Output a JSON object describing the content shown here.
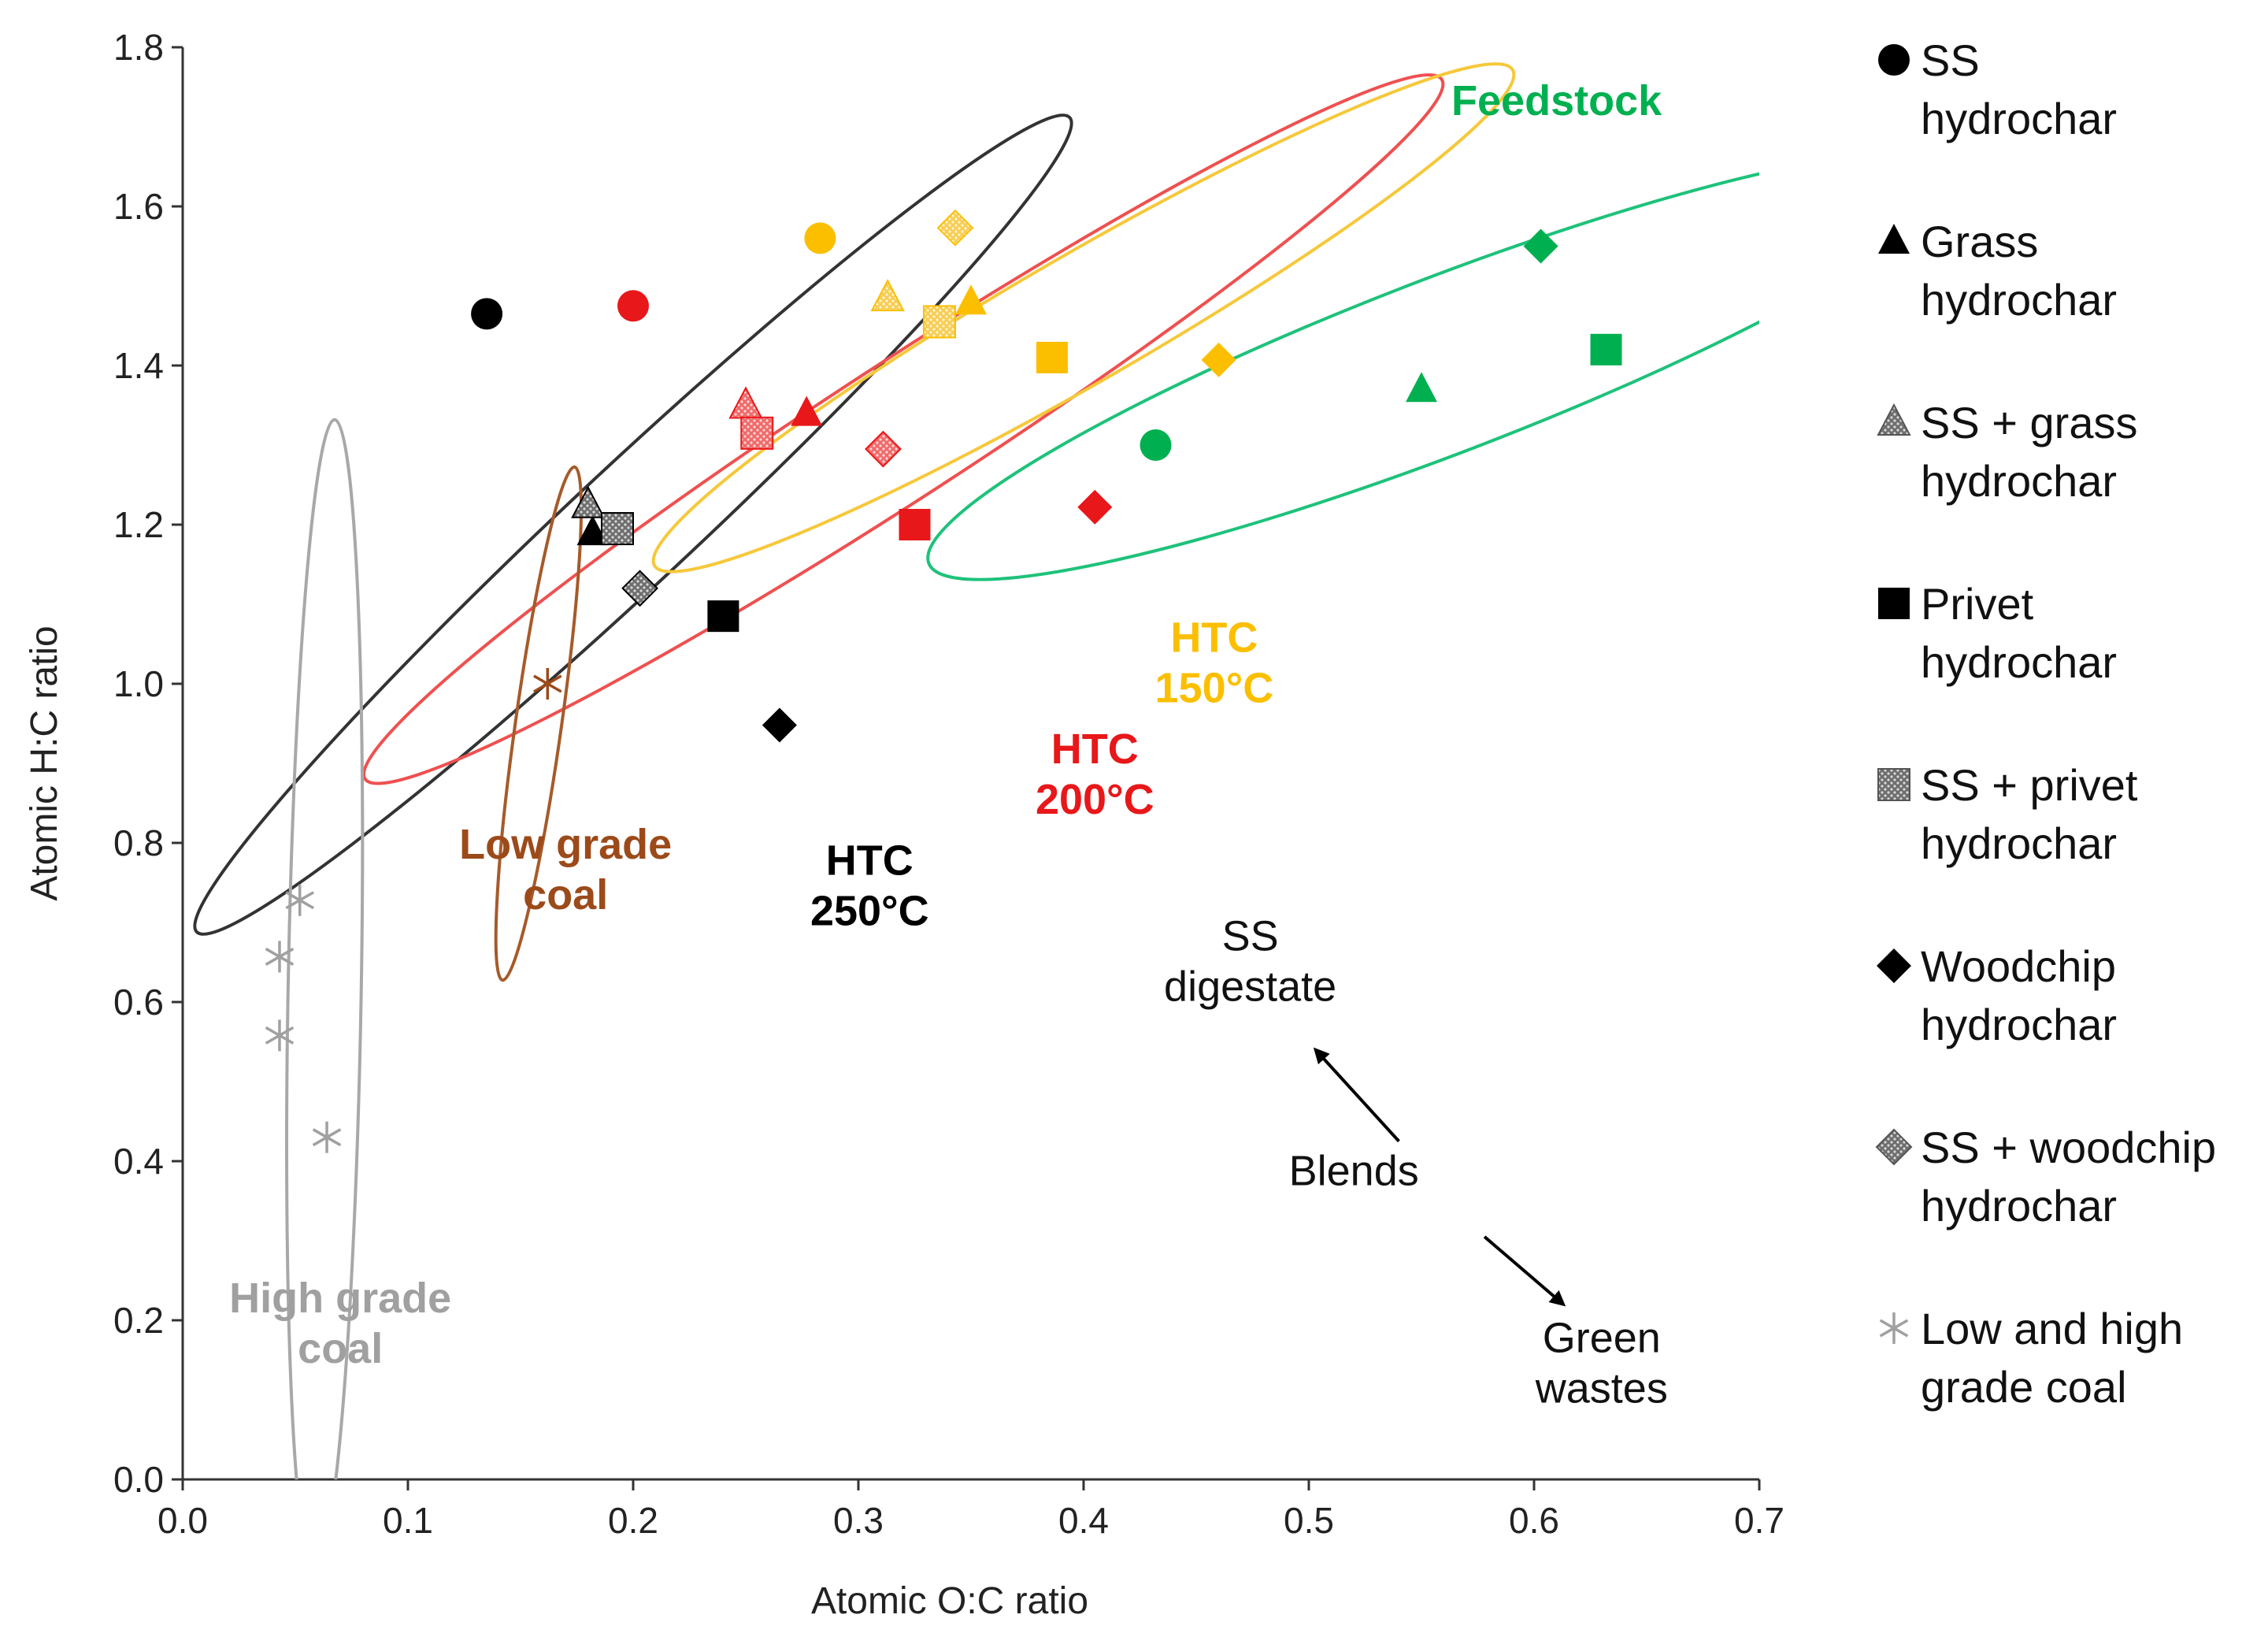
{
  "chart_data": {
    "type": "scatter",
    "title": "",
    "xlabel": "Atomic O:C ratio",
    "ylabel": "Atomic H:C ratio",
    "xlim": [
      0.0,
      0.7
    ],
    "ylim": [
      0.0,
      1.8
    ],
    "xticks": [
      0.0,
      0.1,
      0.2,
      0.3,
      0.4,
      0.5,
      0.6,
      0.7
    ],
    "yticks": [
      0.0,
      0.2,
      0.4,
      0.6,
      0.8,
      1.0,
      1.2,
      1.4,
      1.6,
      1.8
    ],
    "xtick_labels": [
      "0.0",
      "0.1",
      "0.2",
      "0.3",
      "0.4",
      "0.5",
      "0.6",
      "0.7"
    ],
    "ytick_labels": [
      "0.0",
      "0.2",
      "0.4",
      "0.6",
      "0.8",
      "1.0",
      "1.2",
      "1.4",
      "1.6",
      "1.8"
    ],
    "colors": {
      "htc250": "#000000",
      "htc200": "#e8171a",
      "htc150": "#fbbf00",
      "feedstock": "#00b050",
      "low_coal": "#9c4a1a",
      "high_coal": "#a0a0a0",
      "ellipse_black": "#333333",
      "ellipse_red": "#ef5050",
      "ellipse_yellow": "#f6c83a",
      "ellipse_green": "#1ec27a",
      "ellipse_brown": "#a65a2a",
      "ellipse_gray": "#a8a8a8"
    },
    "series": [
      {
        "name": "SS hydrochar",
        "marker": "circle",
        "points": [
          {
            "x": 0.135,
            "y": 1.465,
            "group": "htc250"
          },
          {
            "x": 0.2,
            "y": 1.475,
            "group": "htc200"
          },
          {
            "x": 0.283,
            "y": 1.56,
            "group": "htc150"
          },
          {
            "x": 0.432,
            "y": 1.3,
            "group": "feedstock"
          }
        ]
      },
      {
        "name": "Grass hydrochar",
        "marker": "triangle",
        "points": [
          {
            "x": 0.182,
            "y": 1.19,
            "group": "htc250"
          },
          {
            "x": 0.277,
            "y": 1.34,
            "group": "htc200"
          },
          {
            "x": 0.35,
            "y": 1.48,
            "group": "htc150"
          },
          {
            "x": 0.55,
            "y": 1.37,
            "group": "feedstock"
          }
        ]
      },
      {
        "name": "SS + grass hydrochar",
        "marker": "triangle-textured",
        "points": [
          {
            "x": 0.18,
            "y": 1.225,
            "group": "htc250"
          },
          {
            "x": 0.25,
            "y": 1.35,
            "group": "htc200"
          },
          {
            "x": 0.313,
            "y": 1.485,
            "group": "htc150"
          }
        ]
      },
      {
        "name": "Privet hydrochar",
        "marker": "square",
        "points": [
          {
            "x": 0.24,
            "y": 1.085,
            "group": "htc250"
          },
          {
            "x": 0.325,
            "y": 1.2,
            "group": "htc200"
          },
          {
            "x": 0.386,
            "y": 1.41,
            "group": "htc150"
          },
          {
            "x": 0.632,
            "y": 1.42,
            "group": "feedstock"
          }
        ]
      },
      {
        "name": "SS + privet hydrochar",
        "marker": "square-textured",
        "points": [
          {
            "x": 0.193,
            "y": 1.195,
            "group": "htc250"
          },
          {
            "x": 0.255,
            "y": 1.315,
            "group": "htc200"
          },
          {
            "x": 0.336,
            "y": 1.455,
            "group": "htc150"
          }
        ]
      },
      {
        "name": "Woodchip hydrochar",
        "marker": "diamond",
        "points": [
          {
            "x": 0.265,
            "y": 0.948,
            "group": "htc250"
          },
          {
            "x": 0.405,
            "y": 1.222,
            "group": "htc200"
          },
          {
            "x": 0.46,
            "y": 1.407,
            "group": "htc150"
          },
          {
            "x": 0.603,
            "y": 1.55,
            "group": "feedstock"
          }
        ]
      },
      {
        "name": "SS + woodchip hydrochar",
        "marker": "diamond-textured",
        "points": [
          {
            "x": 0.203,
            "y": 1.12,
            "group": "htc250"
          },
          {
            "x": 0.311,
            "y": 1.295,
            "group": "htc200"
          },
          {
            "x": 0.343,
            "y": 1.573,
            "group": "htc150"
          }
        ]
      },
      {
        "name": "Low and high grade coal",
        "marker": "asterisk",
        "points": [
          {
            "x": 0.162,
            "y": 1.0,
            "group": "low_coal"
          },
          {
            "x": 0.052,
            "y": 0.728,
            "group": "high_coal"
          },
          {
            "x": 0.043,
            "y": 0.657,
            "group": "high_coal"
          },
          {
            "x": 0.043,
            "y": 0.558,
            "group": "high_coal"
          },
          {
            "x": 0.064,
            "y": 0.43,
            "group": "high_coal"
          }
        ]
      }
    ],
    "ellipses": [
      {
        "group": "ellipse_black",
        "cx": 0.2,
        "cy": 1.2,
        "rx": 0.265,
        "ry": 0.075,
        "angle_deg": 43
      },
      {
        "group": "ellipse_red",
        "cx": 0.32,
        "cy": 1.32,
        "rx": 0.285,
        "ry": 0.085,
        "angle_deg": 33
      },
      {
        "group": "ellipse_yellow",
        "cx": 0.4,
        "cy": 1.46,
        "rx": 0.22,
        "ry": 0.08,
        "angle_deg": 30
      },
      {
        "group": "ellipse_green",
        "cx": 0.56,
        "cy": 1.4,
        "rx": 0.245,
        "ry": 0.11,
        "angle_deg": 21
      },
      {
        "group": "ellipse_brown",
        "cx": 0.158,
        "cy": 0.95,
        "rx": 0.115,
        "ry": 0.029,
        "angle_deg": 82
      },
      {
        "group": "ellipse_gray",
        "cx": 0.063,
        "cy": 0.61,
        "rx": 0.255,
        "ry": 0.046,
        "angle_deg": 89
      }
    ],
    "annotations": [
      {
        "key": "feedstock",
        "lines": [
          "Feedstock"
        ],
        "group": "feedstock",
        "x": 0.61,
        "y": 1.715
      },
      {
        "key": "htc150",
        "lines": [
          "HTC",
          "150°C"
        ],
        "group": "htc150",
        "x": 0.458,
        "y": 1.04
      },
      {
        "key": "htc200",
        "lines": [
          "HTC",
          "200°C"
        ],
        "group": "htc200",
        "x": 0.405,
        "y": 0.9
      },
      {
        "key": "htc250",
        "lines": [
          "HTC",
          "250°C"
        ],
        "group": "htc250",
        "x": 0.305,
        "y": 0.76
      },
      {
        "key": "low_coal",
        "lines": [
          "Low grade",
          "coal"
        ],
        "group": "low_coal",
        "x": 0.17,
        "y": 0.78
      },
      {
        "key": "high_coal",
        "lines": [
          "High grade",
          "coal"
        ],
        "group": "high_coal",
        "x": 0.07,
        "y": 0.21
      },
      {
        "key": "ss_digestate",
        "lines": [
          "SS",
          "digestate"
        ],
        "group": "plain",
        "x": 0.474,
        "y": 0.665
      },
      {
        "key": "blends",
        "lines": [
          "Blends"
        ],
        "group": "plain",
        "x": 0.52,
        "y": 0.37
      },
      {
        "key": "green_wastes",
        "lines": [
          "Green",
          "wastes"
        ],
        "group": "plain",
        "x": 0.63,
        "y": 0.16
      }
    ],
    "arrows": [
      {
        "from": [
          0.54,
          0.425
        ],
        "to": [
          0.503,
          0.54
        ]
      },
      {
        "from": [
          0.578,
          0.305
        ],
        "to": [
          0.613,
          0.22
        ]
      }
    ],
    "legend": {
      "placement": "right",
      "entries": [
        {
          "marker": "circle",
          "lines": [
            "SS",
            "hydrochar"
          ]
        },
        {
          "marker": "triangle",
          "lines": [
            "Grass",
            "hydrochar"
          ]
        },
        {
          "marker": "triangle-textured",
          "lines": [
            "SS + grass",
            "hydrochar"
          ]
        },
        {
          "marker": "square",
          "lines": [
            "Privet",
            "hydrochar"
          ]
        },
        {
          "marker": "square-textured",
          "lines": [
            "SS + privet",
            "hydrochar"
          ]
        },
        {
          "marker": "diamond",
          "lines": [
            "Woodchip",
            "hydrochar"
          ]
        },
        {
          "marker": "diamond-textured",
          "lines": [
            "SS + woodchip",
            "hydrochar"
          ]
        },
        {
          "marker": "asterisk",
          "lines": [
            "Low and high",
            "grade coal"
          ]
        }
      ]
    }
  }
}
